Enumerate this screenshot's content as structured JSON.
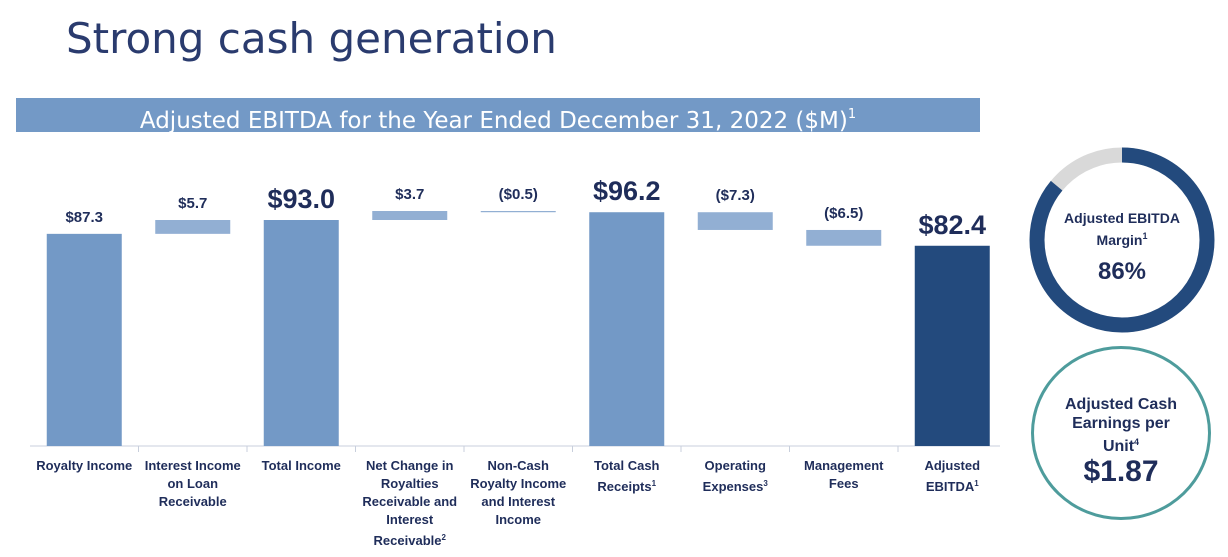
{
  "title": "Strong cash generation",
  "banner": {
    "text": "Adjusted EBITDA for the Year Ended December 31, 2022 ($M)",
    "sup": "1"
  },
  "chart_data": {
    "type": "bar",
    "subtype": "waterfall",
    "categories": [
      {
        "label": "Royalty Income",
        "sup": ""
      },
      {
        "label": "Interest Income on Loan Receivable",
        "sup": ""
      },
      {
        "label": "Total Income",
        "sup": ""
      },
      {
        "label": "Net Change in Royalties Receivable and Interest Receivable",
        "sup": "2"
      },
      {
        "label": "Non-Cash Royalty Income and Interest Income",
        "sup": ""
      },
      {
        "label": "Total Cash Receipts",
        "sup": "1"
      },
      {
        "label": "Operating Expenses",
        "sup": "3"
      },
      {
        "label": "Management Fees",
        "sup": ""
      },
      {
        "label": "Adjusted EBITDA",
        "sup": "1"
      }
    ],
    "values": [
      87.3,
      5.7,
      93.0,
      3.7,
      -0.5,
      96.2,
      -7.3,
      -6.5,
      82.4
    ],
    "bar_kinds": [
      "total",
      "delta",
      "total",
      "delta",
      "delta",
      "total",
      "delta",
      "delta",
      "final"
    ],
    "data_labels": [
      "$87.3",
      "$5.7",
      "$93.0",
      "$3.7",
      "($0.5)",
      "$96.2",
      "($7.3)",
      "($6.5)",
      "$82.4"
    ],
    "ylim": [
      0,
      100
    ],
    "grid": false,
    "colors": {
      "total": "#7399c6",
      "delta": "#92afd3",
      "final": "#234a7d",
      "axis": "#c8cfdc"
    }
  },
  "kpis": {
    "margin": {
      "label_line1": "Adjusted EBITDA",
      "label_line2": "Margin",
      "sup": "1",
      "value": "86%",
      "fraction": 0.86,
      "ring_color": "#234a7d",
      "track_color": "#d9d9d9"
    },
    "cash": {
      "label_line1": "Adjusted Cash",
      "label_line2": "Earnings per",
      "label_line3": "Unit",
      "sup": "4",
      "value": "$1.87",
      "ring_color": "#4e9c9c"
    }
  }
}
